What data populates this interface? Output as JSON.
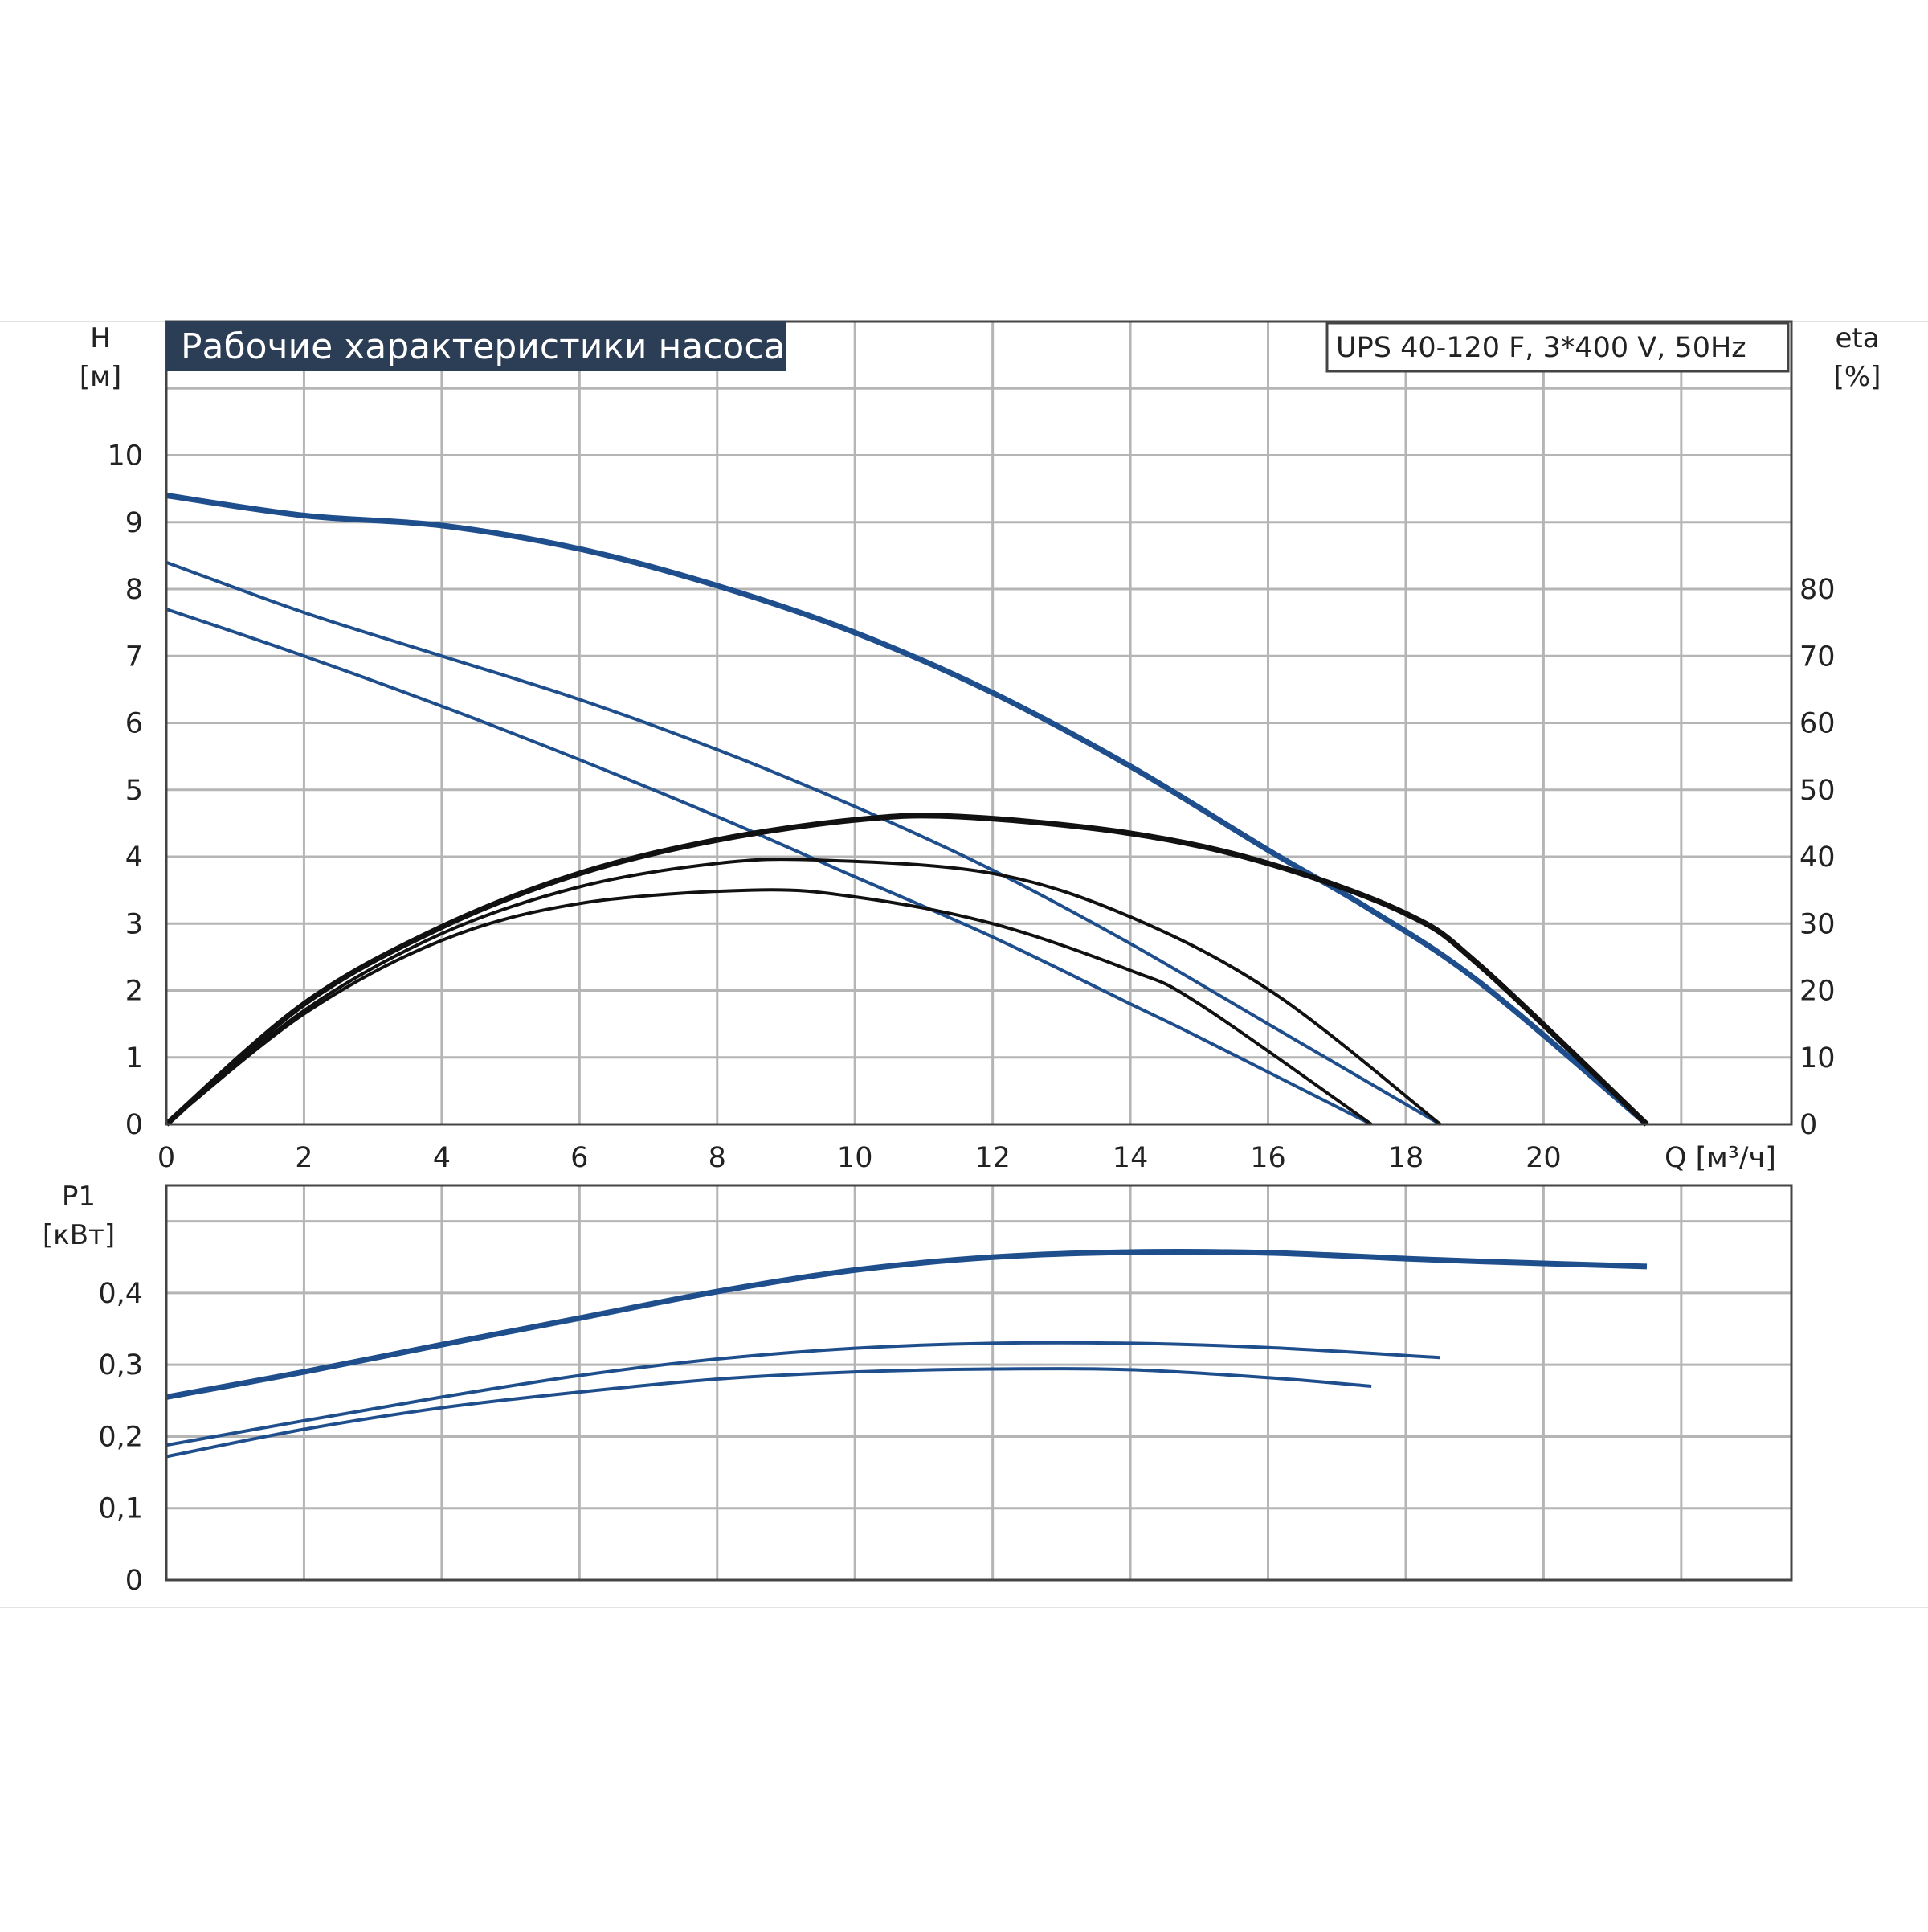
{
  "chart_data": [
    {
      "type": "line",
      "title": "Рабочие характеристики насоса",
      "subtitle": "UPS 40-120 F, 3*400 V, 50Hz",
      "xlabel": "Q [м³/ч]",
      "ylabel_left_name": "H",
      "ylabel_left_unit": "[м]",
      "ylabel_right_name": "eta",
      "ylabel_right_unit": "[%]",
      "xlim": [
        0,
        23.6
      ],
      "ylim_left": [
        0,
        12
      ],
      "ylim_right": [
        0,
        120
      ],
      "x_ticks": [
        "0",
        "2",
        "4",
        "6",
        "8",
        "10",
        "12",
        "14",
        "16",
        "18",
        "20"
      ],
      "y_left_ticks": [
        "0",
        "1",
        "2",
        "3",
        "4",
        "5",
        "6",
        "7",
        "8",
        "9",
        "10"
      ],
      "y_right_ticks": [
        "0",
        "10",
        "20",
        "30",
        "40",
        "50",
        "60",
        "70",
        "80"
      ],
      "grid": true,
      "colors": {
        "head": "#1f4e8c",
        "efficiency": "#111111",
        "title_bg": "#2c3e55"
      },
      "head_series": [
        {
          "x": [
            0,
            2,
            4,
            6,
            8,
            10,
            12,
            14,
            16,
            17.5,
            19.1,
            21.5
          ],
          "values": [
            9.4,
            9.1,
            8.95,
            8.6,
            8.05,
            7.35,
            6.45,
            5.35,
            4.1,
            3.2,
            2.1,
            0
          ]
        },
        {
          "x": [
            0,
            2,
            4,
            6,
            8,
            10,
            12,
            14,
            16,
            18.5
          ],
          "values": [
            8.4,
            7.65,
            7.0,
            6.35,
            5.6,
            4.75,
            3.8,
            2.7,
            1.5,
            0
          ]
        },
        {
          "x": [
            0,
            2,
            4,
            6,
            8,
            10,
            12,
            14,
            15,
            17.5
          ],
          "values": [
            7.7,
            7.0,
            6.25,
            5.45,
            4.6,
            3.7,
            2.8,
            1.8,
            1.3,
            0
          ]
        }
      ],
      "efficiency_series": [
        {
          "x": [
            0,
            2,
            4,
            6,
            8,
            10,
            11.5,
            14,
            16,
            18,
            19.1,
            21.5
          ],
          "values": [
            0,
            18,
            29.5,
            37.5,
            42.5,
            45.5,
            46,
            43.5,
            39,
            31.5,
            23.5,
            0
          ]
        },
        {
          "x": [
            0,
            2,
            4,
            6,
            8,
            9.5,
            12,
            14,
            16.1,
            18.5
          ],
          "values": [
            0,
            17,
            28.5,
            35.5,
            39,
            39.5,
            37.5,
            31,
            19.5,
            0
          ]
        },
        {
          "x": [
            0,
            2,
            4,
            6,
            8.5,
            10,
            12,
            14,
            15,
            17.5
          ],
          "values": [
            0,
            16.5,
            27.5,
            33,
            35,
            34,
            30,
            23,
            18,
            0
          ]
        }
      ]
    },
    {
      "type": "line",
      "ylabel_name": "P1",
      "ylabel_unit": "[кВт]",
      "xlim": [
        0,
        23.6
      ],
      "ylim": [
        0,
        0.55
      ],
      "y_ticks": [
        "0",
        "0,1",
        "0,2",
        "0,3",
        "0,4"
      ],
      "grid": true,
      "series": [
        {
          "x": [
            0,
            2,
            4,
            6,
            8,
            10,
            12,
            14,
            16,
            18,
            19.1,
            21.5
          ],
          "values": [
            0.255,
            0.29,
            0.328,
            0.365,
            0.402,
            0.432,
            0.45,
            0.457,
            0.456,
            0.448,
            0.444,
            0.437
          ]
        },
        {
          "x": [
            0,
            2,
            4,
            6,
            8,
            10,
            12,
            14,
            16,
            18.5
          ],
          "values": [
            0.188,
            0.222,
            0.255,
            0.285,
            0.308,
            0.323,
            0.33,
            0.33,
            0.324,
            0.31
          ]
        },
        {
          "x": [
            0,
            2,
            4,
            6,
            8,
            10,
            12,
            14,
            16,
            17.5
          ],
          "values": [
            0.172,
            0.21,
            0.24,
            0.262,
            0.28,
            0.29,
            0.294,
            0.293,
            0.282,
            0.27
          ]
        }
      ]
    }
  ]
}
